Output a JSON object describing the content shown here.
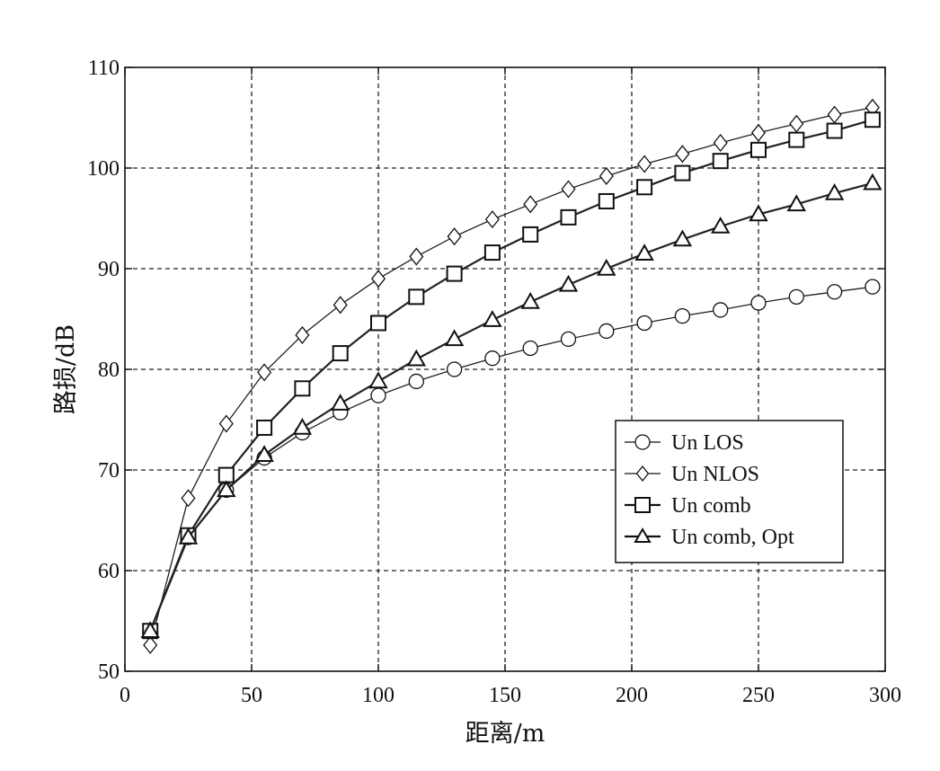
{
  "chart_data": {
    "type": "line",
    "xlabel": "距离/m",
    "ylabel": "路损/dB",
    "xlim": [
      0,
      300
    ],
    "ylim": [
      50,
      110
    ],
    "xticks": [
      "0",
      "50",
      "100",
      "150",
      "200",
      "250",
      "300"
    ],
    "yticks": [
      "50",
      "60",
      "70",
      "80",
      "90",
      "100",
      "110"
    ],
    "grid": true,
    "legend_position": "lower-right",
    "x": [
      10,
      25,
      40,
      55,
      70,
      85,
      100,
      115,
      130,
      145,
      160,
      175,
      190,
      205,
      220,
      235,
      250,
      265,
      280,
      295
    ],
    "series": [
      {
        "name": "Un LOS",
        "marker": "circle",
        "color": "#222222",
        "values": [
          54.0,
          63.3,
          68.0,
          71.2,
          73.7,
          75.7,
          77.4,
          78.8,
          80.0,
          81.1,
          82.1,
          83.0,
          83.8,
          84.6,
          85.3,
          85.9,
          86.6,
          87.2,
          87.7,
          88.2
        ]
      },
      {
        "name": "Un NLOS",
        "marker": "diamond",
        "color": "#222222",
        "values": [
          52.6,
          67.2,
          74.6,
          79.7,
          83.4,
          86.4,
          89.0,
          91.2,
          93.2,
          94.9,
          96.4,
          97.9,
          99.2,
          100.4,
          101.4,
          102.5,
          103.5,
          104.4,
          105.3,
          106.0
        ]
      },
      {
        "name": "Un comb",
        "marker": "square",
        "color": "#222222",
        "values": [
          54.0,
          63.5,
          69.5,
          74.2,
          78.1,
          81.6,
          84.6,
          87.2,
          89.5,
          91.6,
          93.4,
          95.1,
          96.7,
          98.1,
          99.5,
          100.7,
          101.8,
          102.8,
          103.7,
          104.8
        ]
      },
      {
        "name": "Un comb, Opt",
        "marker": "triangle",
        "color": "#222222",
        "values": [
          54.0,
          63.3,
          68.0,
          71.5,
          74.2,
          76.6,
          78.8,
          81.0,
          83.0,
          84.9,
          86.7,
          88.4,
          90.0,
          91.5,
          92.9,
          94.2,
          95.4,
          96.4,
          97.5,
          98.5
        ]
      }
    ]
  }
}
